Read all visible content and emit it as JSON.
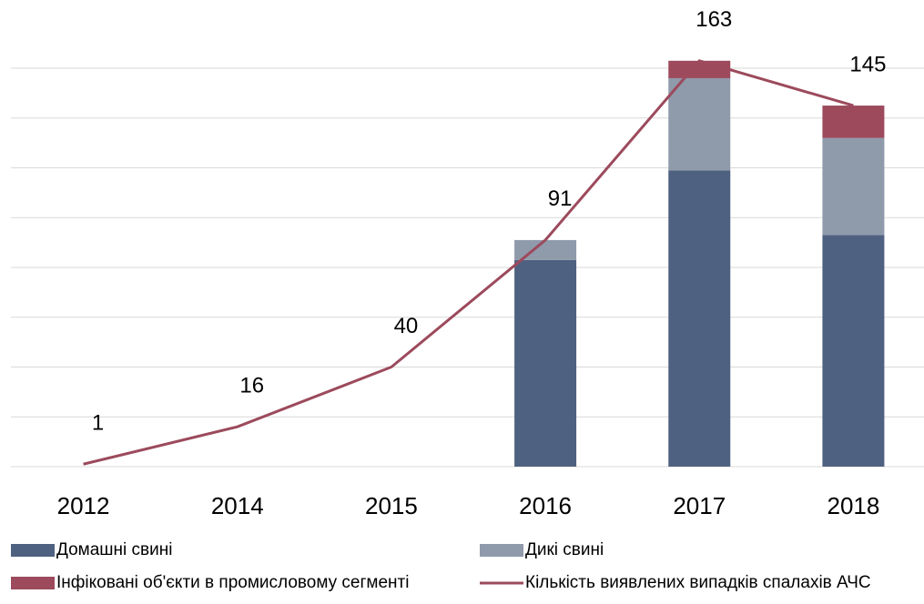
{
  "chart_data": {
    "type": "bar",
    "categories": [
      "2012",
      "2014",
      "2015",
      "2016",
      "2017",
      "2018"
    ],
    "series": [
      {
        "name": "Домашні свині",
        "color": "#4f6180",
        "values": [
          null,
          null,
          null,
          83,
          119,
          93
        ]
      },
      {
        "name": "Дикі свині",
        "color": "#8f9aab",
        "values": [
          null,
          null,
          null,
          8,
          37,
          39
        ]
      },
      {
        "name": "Інфіковані об'єкти в промисловому сегменті",
        "color": "#9c4a5c",
        "values": [
          null,
          null,
          null,
          null,
          7,
          13
        ]
      },
      {
        "name": "Кількість виявлених випадків спалахів АЧС",
        "color": "#9c4a5c",
        "type": "line",
        "values": [
          1,
          16,
          40,
          91,
          163,
          145
        ]
      }
    ],
    "ylim": [
      0,
      160
    ],
    "yticks": [
      0,
      20,
      40,
      60,
      80,
      100,
      120,
      140,
      160
    ],
    "grid": true,
    "legend": "bottom"
  }
}
